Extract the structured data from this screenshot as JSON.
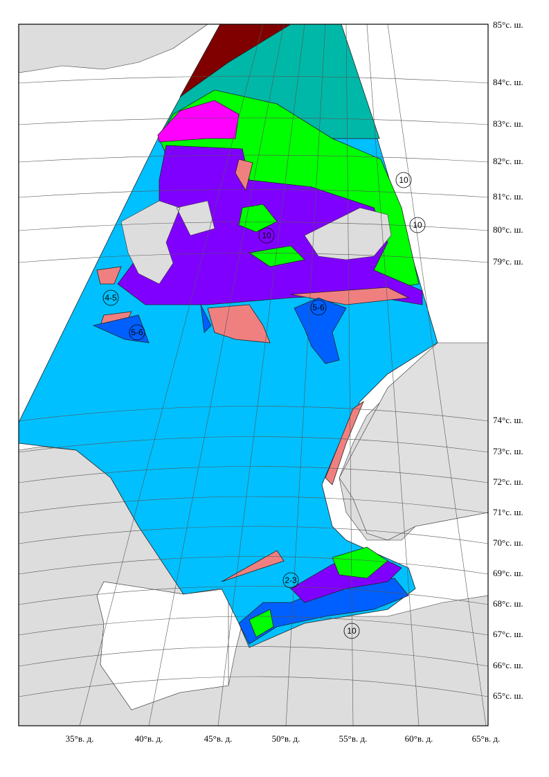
{
  "latitude_labels": [
    "85°с. ш.",
    "84°с. ш.",
    "83°с. ш.",
    "82°с. ш.",
    "81°с. ш.",
    "80°с. ш.",
    "79°с. ш.",
    "74°с. ш.",
    "73°с. ш.",
    "72°с. ш.",
    "71°с. ш.",
    "70°с. ш.",
    "69°с. ш.",
    "68°с. ш.",
    "67°с. ш.",
    "66°с. ш.",
    "65°с. ш."
  ],
  "longitude_labels": [
    "35°в. д.",
    "40°в. д.",
    "45°в. д.",
    "50°в. д.",
    "55°в. д.",
    "60°в. д.",
    "65°в. д."
  ],
  "zone_labels": [
    "10",
    "10",
    "10",
    "10",
    "5-6",
    "4-5",
    "5-6",
    "2-3"
  ]
}
